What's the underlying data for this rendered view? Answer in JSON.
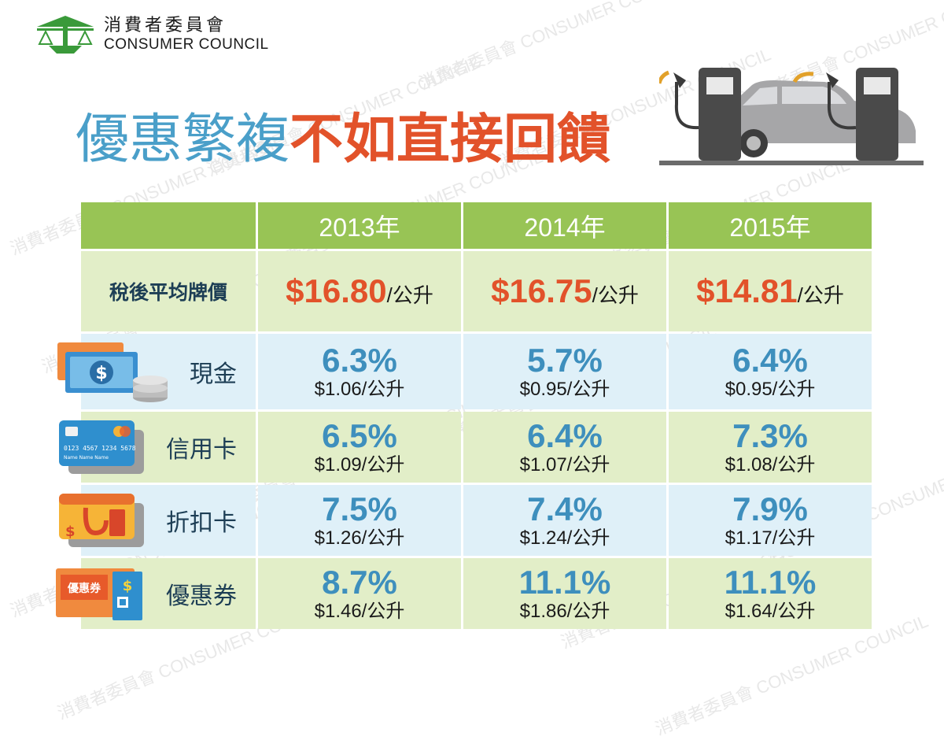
{
  "logo": {
    "zh": "消費者委員會",
    "en": "CONSUMER COUNCIL"
  },
  "headline": {
    "part1": "優惠繁複",
    "part2": "不如直接回饋"
  },
  "watermark": {
    "zh": "消費者委員會",
    "en": "CONSUMER COUNCIL"
  },
  "colors": {
    "header": "#98c455",
    "accent_red": "#e2522a",
    "accent_blue": "#3e8fbd",
    "row_green": "#e2eec8",
    "row_blue": "#dff0f8"
  },
  "chart_data": {
    "type": "table",
    "columns": [
      "2013年",
      "2014年",
      "2015年"
    ],
    "price_row": {
      "label": "稅後平均牌價",
      "values": [
        "$16.80",
        "$16.75",
        "$14.81"
      ],
      "unit": "/公升"
    },
    "rows": [
      {
        "label": "現金",
        "icon": "cash-icon",
        "percents": [
          "6.3%",
          "5.7%",
          "6.4%"
        ],
        "amounts": [
          "$1.06/公升",
          "$0.95/公升",
          "$0.95/公升"
        ]
      },
      {
        "label": "信用卡",
        "icon": "credit-card-icon",
        "card_text": "0123 4567 1234 5678",
        "card_name": "Name Name Name",
        "percents": [
          "6.5%",
          "6.4%",
          "7.3%"
        ],
        "amounts": [
          "$1.09/公升",
          "$1.07/公升",
          "$1.08/公升"
        ]
      },
      {
        "label": "折扣卡",
        "icon": "discount-card-icon",
        "percents": [
          "7.5%",
          "7.4%",
          "7.9%"
        ],
        "amounts": [
          "$1.26/公升",
          "$1.24/公升",
          "$1.17/公升"
        ]
      },
      {
        "label": "優惠券",
        "icon": "coupon-icon",
        "coupon_text": "優惠券",
        "percents": [
          "8.7%",
          "11.1%",
          "11.1%"
        ],
        "amounts": [
          "$1.46/公升",
          "$1.86/公升",
          "$1.64/公升"
        ]
      }
    ]
  }
}
